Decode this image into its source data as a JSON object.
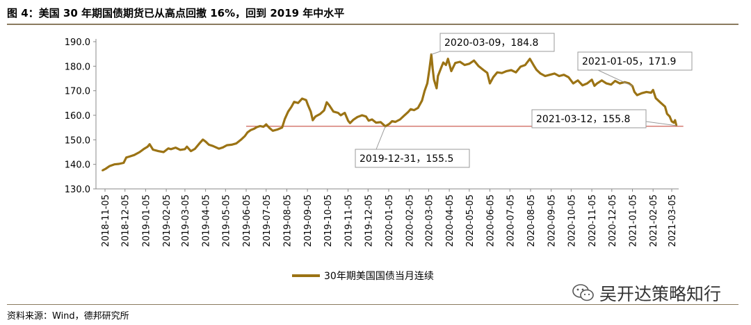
{
  "figure": {
    "title": "图 4：美国 30 年期国债期货已从高点回撤 16%，回到 2019 年中水平",
    "source": "资料来源：Wind，德邦研究所",
    "watermark": "吴开达策略知行"
  },
  "colors": {
    "series": "#9b7314",
    "reference_line": "#c0392b",
    "axis": "#888888",
    "rule": "#8a7a5e",
    "callout_border": "#9a9a9a"
  },
  "chart_data": {
    "type": "line",
    "title": "",
    "xlabel": "",
    "ylabel": "",
    "ylim": [
      130,
      190
    ],
    "yticks": [
      130,
      140,
      150,
      160,
      170,
      180,
      190
    ],
    "ytick_labels": [
      "130.0",
      "140.0",
      "150.0",
      "160.0",
      "170.0",
      "180.0",
      "190.0"
    ],
    "xtick_labels": [
      "2018-11-05",
      "2018-12-05",
      "2019-01-05",
      "2019-02-05",
      "2019-03-05",
      "2019-04-05",
      "2019-05-05",
      "2019-06-05",
      "2019-07-05",
      "2019-08-05",
      "2019-09-05",
      "2019-10-05",
      "2019-11-05",
      "2019-12-05",
      "2020-01-05",
      "2020-02-05",
      "2020-03-05",
      "2020-04-05",
      "2020-05-05",
      "2020-06-05",
      "2020-07-05",
      "2020-08-05",
      "2020-09-05",
      "2020-10-05",
      "2020-11-05",
      "2020-12-05",
      "2021-01-05",
      "2021-02-05",
      "2021-03-05"
    ],
    "legend_position": "bottom",
    "grid": false,
    "series": [
      {
        "name": "30年期美国国债当月连续",
        "points": [
          [
            "2018-11-01",
            137.5
          ],
          [
            "2018-11-06",
            138.2
          ],
          [
            "2018-11-12",
            139.3
          ],
          [
            "2018-11-19",
            140.0
          ],
          [
            "2018-11-26",
            140.2
          ],
          [
            "2018-12-03",
            140.6
          ],
          [
            "2018-12-07",
            142.8
          ],
          [
            "2018-12-12",
            143.2
          ],
          [
            "2018-12-19",
            143.8
          ],
          [
            "2018-12-27",
            145.0
          ],
          [
            "2019-01-03",
            146.4
          ],
          [
            "2019-01-08",
            147.2
          ],
          [
            "2019-01-11",
            148.2
          ],
          [
            "2019-01-16",
            146.0
          ],
          [
            "2019-01-24",
            145.4
          ],
          [
            "2019-02-01",
            145.0
          ],
          [
            "2019-02-08",
            146.5
          ],
          [
            "2019-02-12",
            146.2
          ],
          [
            "2019-02-19",
            146.8
          ],
          [
            "2019-02-26",
            145.9
          ],
          [
            "2019-03-05",
            146.2
          ],
          [
            "2019-03-08",
            147.2
          ],
          [
            "2019-03-14",
            145.4
          ],
          [
            "2019-03-20",
            146.3
          ],
          [
            "2019-03-27",
            148.6
          ],
          [
            "2019-04-01",
            150.1
          ],
          [
            "2019-04-05",
            149.3
          ],
          [
            "2019-04-10",
            148.0
          ],
          [
            "2019-04-16",
            147.5
          ],
          [
            "2019-04-25",
            146.4
          ],
          [
            "2019-05-01",
            146.9
          ],
          [
            "2019-05-07",
            147.8
          ],
          [
            "2019-05-14",
            148.0
          ],
          [
            "2019-05-21",
            148.5
          ],
          [
            "2019-05-28",
            150.0
          ],
          [
            "2019-06-03",
            151.5
          ],
          [
            "2019-06-07",
            153.0
          ],
          [
            "2019-06-12",
            154.0
          ],
          [
            "2019-06-17",
            154.5
          ],
          [
            "2019-06-21",
            155.2
          ],
          [
            "2019-06-26",
            155.6
          ],
          [
            "2019-07-01",
            155.3
          ],
          [
            "2019-07-05",
            156.3
          ],
          [
            "2019-07-10",
            154.8
          ],
          [
            "2019-07-15",
            153.7
          ],
          [
            "2019-07-22",
            154.2
          ],
          [
            "2019-07-29",
            155.0
          ],
          [
            "2019-08-02",
            158.5
          ],
          [
            "2019-08-07",
            161.5
          ],
          [
            "2019-08-12",
            163.5
          ],
          [
            "2019-08-16",
            165.5
          ],
          [
            "2019-08-22",
            165.0
          ],
          [
            "2019-08-28",
            166.8
          ],
          [
            "2019-09-03",
            166.2
          ],
          [
            "2019-09-06",
            164.0
          ],
          [
            "2019-09-10",
            161.5
          ],
          [
            "2019-09-13",
            158.0
          ],
          [
            "2019-09-17",
            159.5
          ],
          [
            "2019-09-24",
            160.5
          ],
          [
            "2019-09-30",
            162.0
          ],
          [
            "2019-10-04",
            165.3
          ],
          [
            "2019-10-08",
            164.0
          ],
          [
            "2019-10-14",
            161.5
          ],
          [
            "2019-10-21",
            161.0
          ],
          [
            "2019-10-25",
            160.0
          ],
          [
            "2019-10-31",
            161.0
          ],
          [
            "2019-11-05",
            157.8
          ],
          [
            "2019-11-08",
            156.8
          ],
          [
            "2019-11-13",
            158.2
          ],
          [
            "2019-11-19",
            159.3
          ],
          [
            "2019-11-26",
            160.0
          ],
          [
            "2019-12-02",
            159.5
          ],
          [
            "2019-12-06",
            157.8
          ],
          [
            "2019-12-11",
            158.3
          ],
          [
            "2019-12-17",
            157.0
          ],
          [
            "2019-12-24",
            157.2
          ],
          [
            "2019-12-31",
            155.5
          ],
          [
            "2020-01-06",
            156.5
          ],
          [
            "2020-01-10",
            157.6
          ],
          [
            "2020-01-15",
            157.3
          ],
          [
            "2020-01-22",
            158.3
          ],
          [
            "2020-01-28",
            159.8
          ],
          [
            "2020-02-03",
            161.3
          ],
          [
            "2020-02-07",
            162.5
          ],
          [
            "2020-02-12",
            162.1
          ],
          [
            "2020-02-18",
            163.0
          ],
          [
            "2020-02-24",
            166.0
          ],
          [
            "2020-02-28",
            170.0
          ],
          [
            "2020-03-03",
            173.0
          ],
          [
            "2020-03-06",
            178.5
          ],
          [
            "2020-03-09",
            184.8
          ],
          [
            "2020-03-11",
            179.0
          ],
          [
            "2020-03-13",
            174.5
          ],
          [
            "2020-03-17",
            171.0
          ],
          [
            "2020-03-19",
            176.0
          ],
          [
            "2020-03-24",
            179.5
          ],
          [
            "2020-03-27",
            181.5
          ],
          [
            "2020-03-31",
            180.5
          ],
          [
            "2020-04-03",
            183.0
          ],
          [
            "2020-04-08",
            178.0
          ],
          [
            "2020-04-14",
            181.3
          ],
          [
            "2020-04-21",
            181.8
          ],
          [
            "2020-04-28",
            180.5
          ],
          [
            "2020-05-05",
            181.0
          ],
          [
            "2020-05-12",
            182.3
          ],
          [
            "2020-05-19",
            180.0
          ],
          [
            "2020-05-26",
            178.5
          ],
          [
            "2020-06-01",
            177.3
          ],
          [
            "2020-06-05",
            173.0
          ],
          [
            "2020-06-10",
            175.5
          ],
          [
            "2020-06-16",
            177.5
          ],
          [
            "2020-06-23",
            177.2
          ],
          [
            "2020-06-30",
            178.0
          ],
          [
            "2020-07-07",
            178.4
          ],
          [
            "2020-07-14",
            177.5
          ],
          [
            "2020-07-21",
            179.8
          ],
          [
            "2020-07-28",
            180.5
          ],
          [
            "2020-08-04",
            183.0
          ],
          [
            "2020-08-10",
            180.2
          ],
          [
            "2020-08-14",
            178.5
          ],
          [
            "2020-08-20",
            177.0
          ],
          [
            "2020-08-27",
            176.0
          ],
          [
            "2020-09-03",
            176.5
          ],
          [
            "2020-09-10",
            177.0
          ],
          [
            "2020-09-17",
            176.0
          ],
          [
            "2020-09-24",
            176.5
          ],
          [
            "2020-10-01",
            175.5
          ],
          [
            "2020-10-08",
            173.0
          ],
          [
            "2020-10-15",
            174.2
          ],
          [
            "2020-10-22",
            172.2
          ],
          [
            "2020-10-29",
            173.0
          ],
          [
            "2020-11-05",
            174.5
          ],
          [
            "2020-11-09",
            172.0
          ],
          [
            "2020-11-13",
            173.0
          ],
          [
            "2020-11-20",
            174.2
          ],
          [
            "2020-11-27",
            173.0
          ],
          [
            "2020-12-04",
            172.5
          ],
          [
            "2020-12-10",
            174.0
          ],
          [
            "2020-12-17",
            173.0
          ],
          [
            "2020-12-24",
            173.5
          ],
          [
            "2020-12-31",
            173.0
          ],
          [
            "2021-01-05",
            171.9
          ],
          [
            "2021-01-08",
            169.5
          ],
          [
            "2021-01-12",
            168.2
          ],
          [
            "2021-01-19",
            169.0
          ],
          [
            "2021-01-26",
            169.5
          ],
          [
            "2021-02-02",
            169.2
          ],
          [
            "2021-02-05",
            170.3
          ],
          [
            "2021-02-09",
            167.0
          ],
          [
            "2021-02-16",
            165.2
          ],
          [
            "2021-02-23",
            163.5
          ],
          [
            "2021-02-26",
            160.6
          ],
          [
            "2021-03-02",
            159.5
          ],
          [
            "2021-03-05",
            157.5
          ],
          [
            "2021-03-08",
            157.0
          ],
          [
            "2021-03-10",
            158.0
          ],
          [
            "2021-03-12",
            155.8
          ]
        ]
      }
    ],
    "reference_line": {
      "y": 155.5,
      "from": "2019-06-05",
      "to": "2021-03-12"
    },
    "annotations": [
      {
        "text": "2020-03-09，184.8",
        "date": "2020-03-09",
        "value": 184.8
      },
      {
        "text": "2021-01-05，171.9",
        "date": "2021-01-05",
        "value": 171.9
      },
      {
        "text": "2021-03-12，155.8",
        "date": "2021-03-12",
        "value": 155.8
      },
      {
        "text": "2019-12-31，155.5",
        "date": "2019-12-31",
        "value": 155.5
      }
    ]
  }
}
